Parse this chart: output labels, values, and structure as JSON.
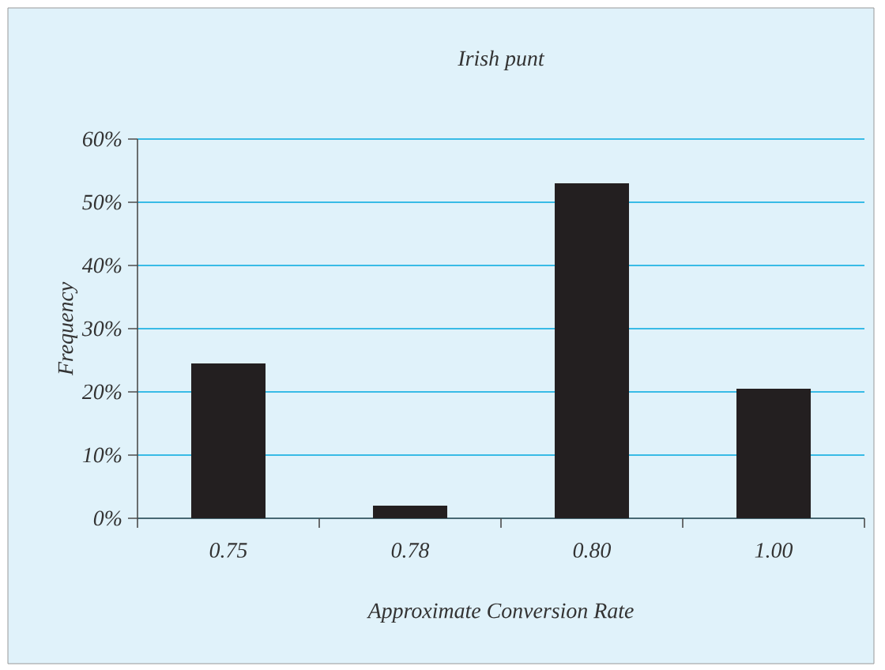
{
  "chart_data": {
    "type": "bar",
    "title": "Irish punt",
    "xlabel": "Approximate Conversion Rate",
    "ylabel": "Frequency",
    "categories": [
      "0.75",
      "0.78",
      "0.80",
      "1.00"
    ],
    "values": [
      24.5,
      2,
      53,
      20.5
    ],
    "color": "#231f20",
    "ylim": [
      0,
      60
    ],
    "yticks": [
      {
        "value": 0,
        "label": "0%"
      },
      {
        "value": 10,
        "label": "10%"
      },
      {
        "value": 20,
        "label": "20%"
      },
      {
        "value": 30,
        "label": "30%"
      },
      {
        "value": 40,
        "label": "40%"
      },
      {
        "value": 50,
        "label": "50%"
      },
      {
        "value": 60,
        "label": "60%"
      }
    ],
    "grid": "y"
  }
}
